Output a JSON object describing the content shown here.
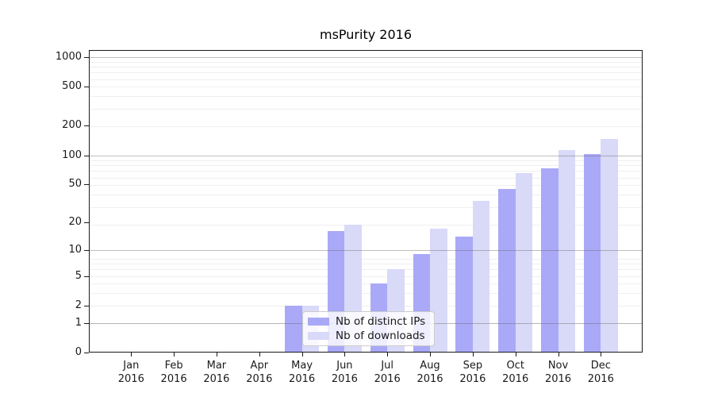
{
  "title": "msPurity 2016",
  "chart_data": {
    "type": "bar",
    "title": "msPurity 2016",
    "categories": [
      "Jan",
      "Feb",
      "Mar",
      "Apr",
      "May",
      "Jun",
      "Jul",
      "Aug",
      "Sep",
      "Oct",
      "Nov",
      "Dec"
    ],
    "year_label": "2016",
    "series": [
      {
        "name": "Nb of distinct IPs",
        "color": "#a9a9f8",
        "values": [
          0,
          0,
          0,
          0,
          2,
          16,
          4,
          9,
          14,
          45,
          74,
          103
        ]
      },
      {
        "name": "Nb of downloads",
        "color": "#d9d9f8",
        "values": [
          0,
          0,
          0,
          0,
          2,
          19,
          6,
          17,
          34,
          65,
          114,
          148
        ]
      }
    ],
    "y_scale": "log10(1+x)",
    "y_ticks": [
      0,
      1,
      2,
      5,
      10,
      20,
      50,
      100,
      200,
      500,
      1000
    ],
    "ylim": [
      0,
      1170
    ],
    "xlabel": "",
    "ylabel": "",
    "grid": true,
    "legend_position": "lower center inside"
  }
}
